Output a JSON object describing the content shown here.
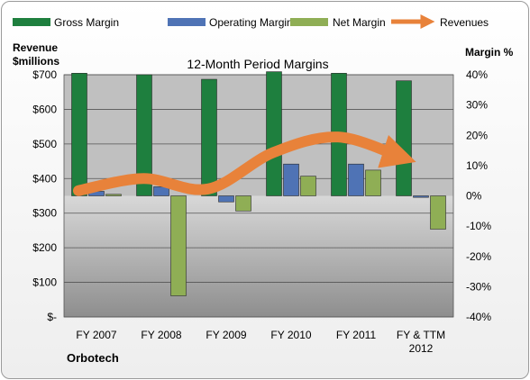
{
  "chart_data": {
    "type": "bar",
    "title": "12-Month Period Margins",
    "company": "Orbotech",
    "categories": [
      "FY 2007",
      "FY 2008",
      "FY 2009",
      "FY 2010",
      "FY 2011",
      "FY & TTM 2012"
    ],
    "y_left": {
      "label_line1": "Revenue",
      "label_line2": "$millions",
      "range": [
        0,
        700
      ],
      "ticks": [
        "$-",
        "$100",
        "$200",
        "$300",
        "$400",
        "$500",
        "$600",
        "$700"
      ]
    },
    "y_right": {
      "label": "Margin %",
      "range": [
        -40,
        40
      ],
      "ticks": [
        "-40%",
        "-30%",
        "-20%",
        "-10%",
        "0%",
        "10%",
        "20%",
        "30%",
        "40%"
      ]
    },
    "series": [
      {
        "name": "Gross Margin",
        "axis": "right",
        "color": "#1e7f3e",
        "values": [
          40.5,
          40,
          38.5,
          41,
          40.5,
          38
        ]
      },
      {
        "name": "Operating Margin",
        "axis": "right",
        "color": "#4f73b5",
        "values": [
          1.5,
          3,
          -2,
          10.5,
          10.5,
          -0.5
        ]
      },
      {
        "name": "Net Margin",
        "axis": "right",
        "color": "#8fae55",
        "values": [
          0.5,
          -33,
          -5,
          6.5,
          8.5,
          -11
        ]
      },
      {
        "name": "Revenues",
        "axis": "left",
        "color": "#e8823a",
        "type": "line",
        "values": [
          365,
          400,
          370,
          475,
          520,
          460
        ]
      }
    ],
    "grid": true,
    "legend_position": "top"
  }
}
